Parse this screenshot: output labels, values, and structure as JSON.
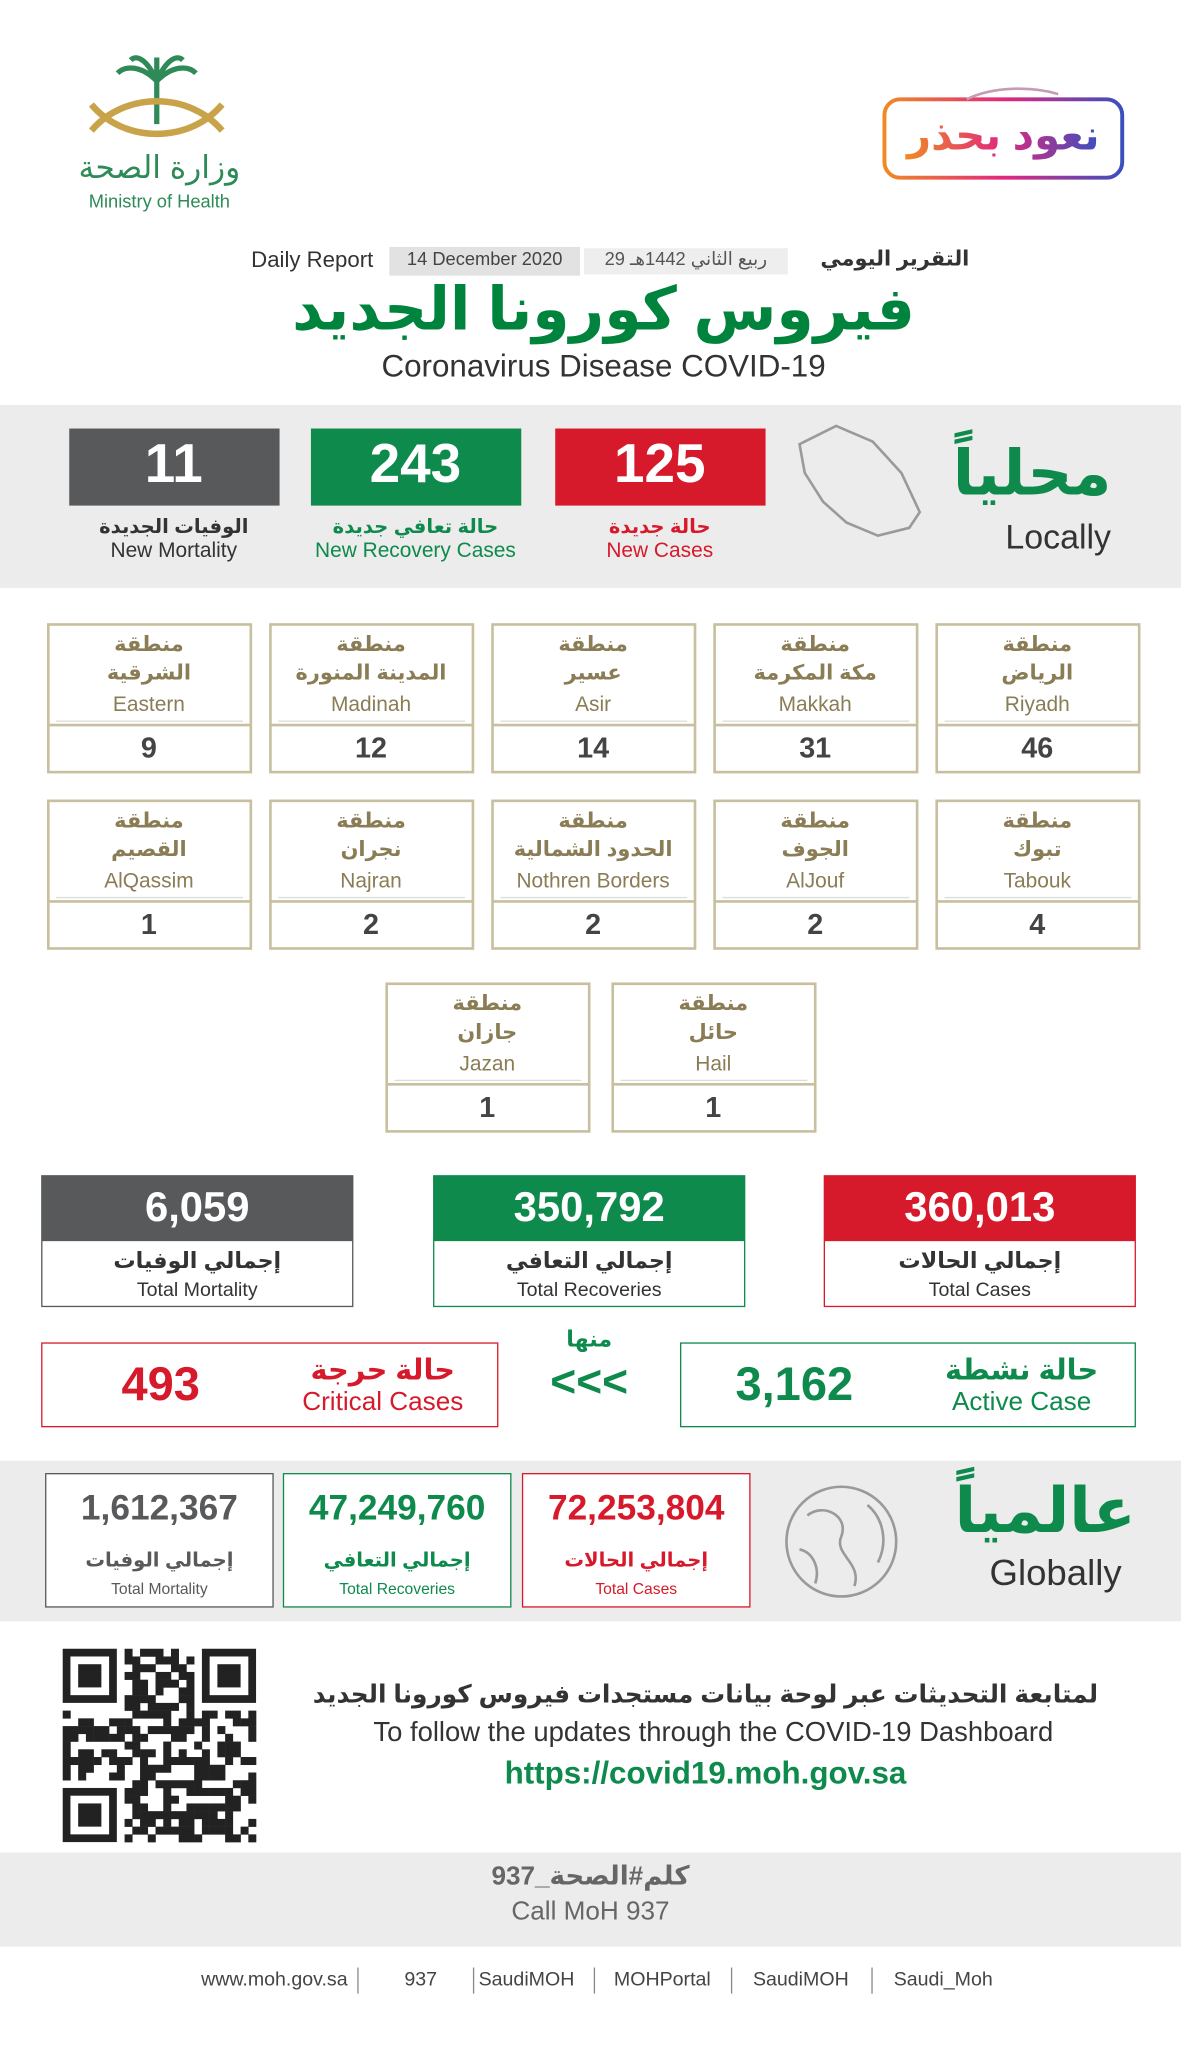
{
  "header": {
    "logo_ar": "وزارة الصحة",
    "logo_en": "Ministry of Health",
    "slogan": "نعود بحذر",
    "report_ar": "التقرير اليومي",
    "hijri_date": "29 ربيع الثاني 1442هـ",
    "date": "14 December 2020",
    "report_en": "Daily Report",
    "title_ar": "فيروس كورونا الجديد",
    "title_en": "Coronavirus Disease COVID-19"
  },
  "local": {
    "label_ar": "محلياً",
    "label_en": "Locally",
    "stats": [
      {
        "value": "125",
        "label_ar": "حالة جديدة",
        "label_en": "New Cases"
      },
      {
        "value": "243",
        "label_ar": "حالة تعافي جديدة",
        "label_en": "New Recovery Cases"
      },
      {
        "value": "11",
        "label_ar": "الوفيات الجديدة",
        "label_en": "New Mortality"
      }
    ]
  },
  "regions": [
    {
      "prefix": "منطقة",
      "name_ar": "الرياض",
      "name_en": "Riyadh",
      "value": "46"
    },
    {
      "prefix": "منطقة",
      "name_ar": "مكة المكرمة",
      "name_en": "Makkah",
      "value": "31"
    },
    {
      "prefix": "منطقة",
      "name_ar": "عسير",
      "name_en": "Asir",
      "value": "14"
    },
    {
      "prefix": "منطقة",
      "name_ar": "المدينة المنورة",
      "name_en": "Madinah",
      "value": "12"
    },
    {
      "prefix": "منطقة",
      "name_ar": "الشرقية",
      "name_en": "Eastern",
      "value": "9"
    },
    {
      "prefix": "منطقة",
      "name_ar": "تبوك",
      "name_en": "Tabouk",
      "value": "4"
    },
    {
      "prefix": "منطقة",
      "name_ar": "الجوف",
      "name_en": "AlJouf",
      "value": "2"
    },
    {
      "prefix": "منطقة",
      "name_ar": "الحدود الشمالية",
      "name_en": "Nothren Borders",
      "value": "2"
    },
    {
      "prefix": "منطقة",
      "name_ar": "نجران",
      "name_en": "Najran",
      "value": "2"
    },
    {
      "prefix": "منطقة",
      "name_ar": "القصيم",
      "name_en": "AlQassim",
      "value": "1"
    },
    {
      "prefix": "منطقة",
      "name_ar": "حائل",
      "name_en": "Hail",
      "value": "1"
    },
    {
      "prefix": "منطقة",
      "name_ar": "جازان",
      "name_en": "Jazan",
      "value": "1"
    }
  ],
  "totals": [
    {
      "value": "360,013",
      "label_ar": "إجمالي الحالات",
      "label_en": "Total Cases"
    },
    {
      "value": "350,792",
      "label_ar": "إجمالي التعافي",
      "label_en": "Total Recoveries"
    },
    {
      "value": "6,059",
      "label_ar": "إجمالي الوفيات",
      "label_en": "Total Mortality"
    }
  ],
  "active": {
    "value": "3,162",
    "label_ar": "حالة نشطة",
    "label_en": "Active Case"
  },
  "of_which": "منها",
  "arrows": "<<<",
  "critical": {
    "value": "493",
    "label_ar": "حالة حرجة",
    "label_en": "Critical Cases"
  },
  "global": {
    "label_ar": "عالمياً",
    "label_en": "Globally",
    "stats": [
      {
        "value": "72,253,804",
        "label_ar": "إجمالي الحالات",
        "label_en": "Total Cases"
      },
      {
        "value": "47,249,760",
        "label_ar": "إجمالي التعافي",
        "label_en": "Total Recoveries"
      },
      {
        "value": "1,612,367",
        "label_ar": "إجمالي الوفيات",
        "label_en": "Total Mortality"
      }
    ]
  },
  "dashboard": {
    "text_ar": "لمتابعة التحديثات عبر لوحة بيانات مستجدات فيروس كورونا الجديد",
    "text_en": "To follow the updates through the COVID-19 Dashboard",
    "url": "https://covid19.moh.gov.sa"
  },
  "call": {
    "text_ar": "كلم#الصحة_937",
    "text_en": "Call MoH 937"
  },
  "footer": [
    "www.moh.gov.sa",
    "937",
    "SaudiMOH",
    "MOHPortal",
    "SaudiMOH",
    "Saudi_Moh"
  ]
}
